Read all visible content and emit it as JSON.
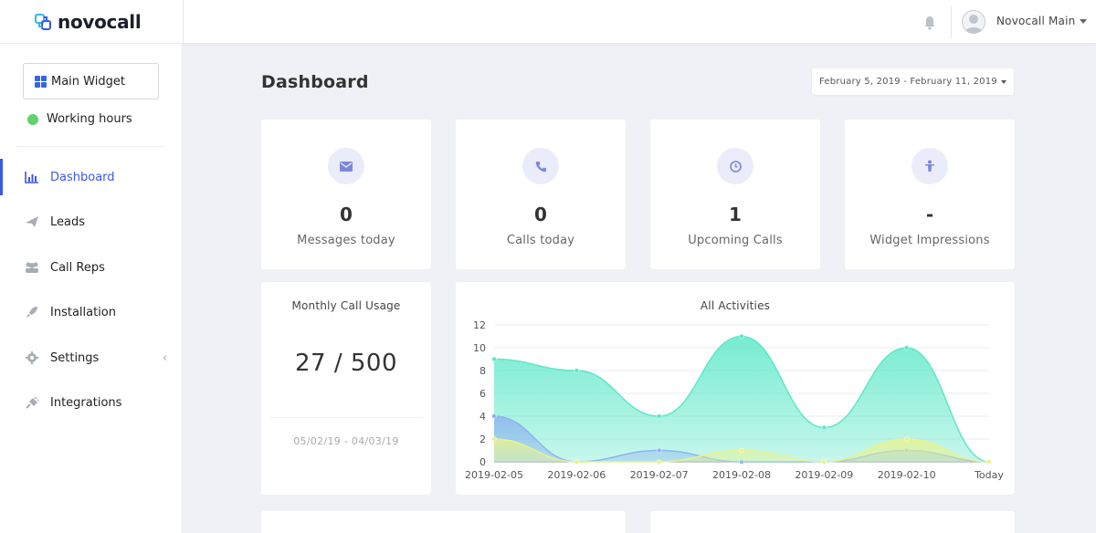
{
  "app": {
    "brand": "novocall"
  },
  "topbar": {
    "user_name": "Novocall Main",
    "icons": {
      "bell": "bell-icon",
      "avatar": "user-avatar-icon"
    }
  },
  "sidebar": {
    "widget_button": "Main Widget",
    "working_status": "Working hours",
    "items": [
      {
        "label": "Dashboard",
        "icon": "bar-chart-icon",
        "active": true
      },
      {
        "label": "Leads",
        "icon": "paper-plane-icon",
        "active": false
      },
      {
        "label": "Call Reps",
        "icon": "users-icon",
        "active": false
      },
      {
        "label": "Installation",
        "icon": "rocket-icon",
        "active": false
      },
      {
        "label": "Settings",
        "icon": "gear-icon",
        "active": false
      },
      {
        "label": "Integrations",
        "icon": "plug-icon",
        "active": false
      }
    ]
  },
  "main": {
    "title": "Dashboard",
    "date_range": "February 5, 2019 - February 11, 2019",
    "stats": [
      {
        "value": "0",
        "label": "Messages today",
        "icon": "envelope-icon"
      },
      {
        "value": "0",
        "label": "Calls today",
        "icon": "phone-icon"
      },
      {
        "value": "1",
        "label": "Upcoming Calls",
        "icon": "clock-icon"
      },
      {
        "value": "-",
        "label": "Widget Impressions",
        "icon": "person-icon"
      }
    ],
    "usage": {
      "title": "Monthly Call Usage",
      "value": "27 / 500",
      "range": "05/02/19 - 04/03/19"
    }
  },
  "colors": {
    "accent": "#3a57e8",
    "green_status": "#61d26b"
  },
  "chart_data": {
    "type": "area",
    "title": "All Activities",
    "categories": [
      "2019-02-05",
      "2019-02-06",
      "2019-02-07",
      "2019-02-08",
      "2019-02-09",
      "2019-02-10",
      "Today"
    ],
    "ylim": [
      0,
      12
    ],
    "yticks": [
      0,
      2,
      4,
      6,
      8,
      10,
      12
    ],
    "grid": true,
    "series": [
      {
        "values": [
          9,
          8,
          4,
          11,
          3,
          10,
          0
        ],
        "color": "#5ee8c8"
      },
      {
        "values": [
          4,
          0,
          1,
          0,
          0,
          1,
          0
        ],
        "color": "#8fb4f0"
      },
      {
        "values": [
          2,
          0,
          0,
          1,
          0,
          2,
          0
        ],
        "color": "#e9f28f"
      }
    ]
  }
}
